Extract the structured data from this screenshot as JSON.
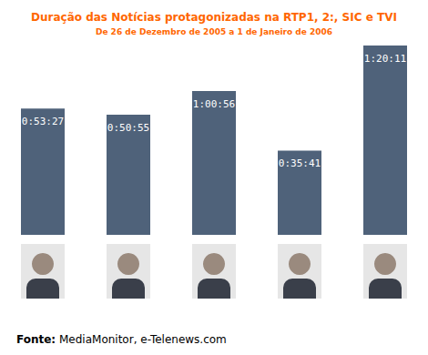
{
  "chart_data": {
    "type": "bar",
    "title": "Duração das Notícias protagonizadas na RTP1, 2:, SIC e TVI",
    "subtitle": "De 26 de Dezembro de 2005 a 1 de Janeiro de 2006",
    "source": "Fonte: MediaMonitor, e-Telenews.com",
    "categories": [
      null,
      null,
      null,
      null,
      null
    ],
    "values": [
      3207,
      3055,
      3656,
      2141,
      4811
    ],
    "value_labels": [
      "0:53:27",
      "0:50:55",
      "1:00:56",
      "0:35:41",
      "1:20:11"
    ],
    "color": "#4f627a",
    "ylim": [
      0,
      4811
    ],
    "data_labels": true,
    "tick_labels": false,
    "grid": false
  }
}
